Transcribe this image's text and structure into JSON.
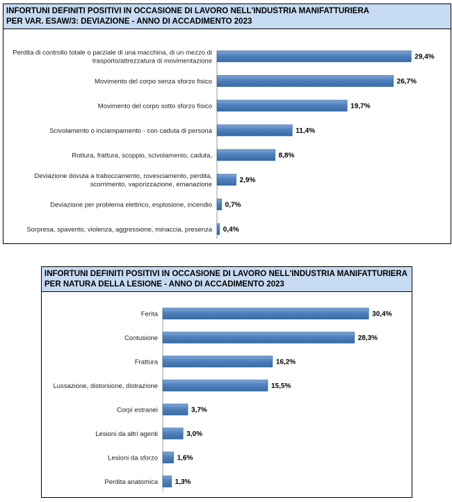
{
  "chart_data": [
    {
      "type": "bar",
      "orientation": "horizontal",
      "title": "INFORTUNI DEFINITI POSITIVI IN OCCASIONE DI LAVORO NELL'INDUSTRIA MANIFATTURIERA",
      "subtitle": "PER VAR. ESAW/3: DEVIAZIONE - ANNO DI ACCADIMENTO 2023",
      "categories": [
        [
          "Perdita di controllo totale o parziale di una macchina, di un mezzo di",
          "trasporto/attrezzatura di movimentazione"
        ],
        [
          "Movimento del corpo senza sforzo fisico"
        ],
        [
          "Movimento del corpo sotto sforzo fisico"
        ],
        [
          "Scivolamento o inciampamento - con caduta di persona"
        ],
        [
          "Rottura, frattura, scoppio, scivolamento, caduta,"
        ],
        [
          "Deviazione dovuta a traboccamento, rovesciamento, perdita,",
          "scorrimento, vaporizzazione, emanazione"
        ],
        [
          "Deviazione per problema elettrico, esplosione, incendio"
        ],
        [
          "Sorpresa, spavento, violenza, aggressione, minaccia, presenza"
        ]
      ],
      "values": [
        29.4,
        26.7,
        19.7,
        11.4,
        8.8,
        2.9,
        0.7,
        0.4
      ],
      "value_labels": [
        "29,4%",
        "26,7%",
        "19,7%",
        "11,4%",
        "8,8%",
        "2,9%",
        "0,7%",
        "0,4%"
      ],
      "xlim": [
        0,
        30
      ],
      "grid": false,
      "bar_color": "#4f81bd"
    },
    {
      "type": "bar",
      "orientation": "horizontal",
      "title": "INFORTUNI DEFINITI POSITIVI IN OCCASIONE DI LAVORO NELL'INDUSTRIA MANIFATTURIERA",
      "subtitle": "PER NATURA DELLA LESIONE - ANNO DI ACCADIMENTO 2023",
      "categories": [
        [
          "Ferita"
        ],
        [
          "Contusione"
        ],
        [
          "Frattura"
        ],
        [
          "Lussazione, distorsione, distrazione"
        ],
        [
          "Corpi estranei"
        ],
        [
          "Lesioni da altri agenti"
        ],
        [
          "Lesioni da sforzo"
        ],
        [
          "Perdita anatomica"
        ]
      ],
      "values": [
        30.4,
        28.3,
        16.2,
        15.5,
        3.7,
        3.0,
        1.6,
        1.3
      ],
      "value_labels": [
        "30,4%",
        "28,3%",
        "16,2%",
        "15,5%",
        "3,7%",
        "3,0%",
        "1,6%",
        "1,3%"
      ],
      "xlim": [
        0,
        31
      ],
      "grid": false,
      "bar_color": "#4f81bd"
    }
  ]
}
